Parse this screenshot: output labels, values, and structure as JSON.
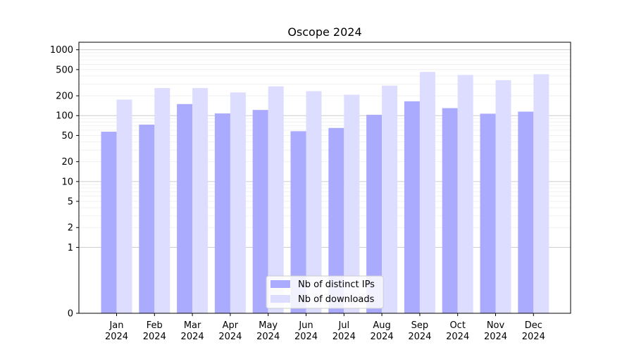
{
  "chart_data": {
    "type": "bar",
    "title": "Oscope 2024",
    "xlabel": "",
    "ylabel": "",
    "y_scale": "symlog",
    "ylim": [
      0,
      1300
    ],
    "y_ticks": [
      0,
      1,
      2,
      5,
      10,
      20,
      50,
      100,
      200,
      500,
      1000
    ],
    "categories": [
      "Jan\n2024",
      "Feb\n2024",
      "Mar\n2024",
      "Apr\n2024",
      "May\n2024",
      "Jun\n2024",
      "Jul\n2024",
      "Aug\n2024",
      "Sep\n2024",
      "Oct\n2024",
      "Nov\n2024",
      "Dec\n2024"
    ],
    "series": [
      {
        "name": "Nb of distinct IPs",
        "color": "#aaaaff",
        "values": [
          57,
          73,
          150,
          108,
          122,
          58,
          65,
          103,
          165,
          130,
          107,
          115
        ]
      },
      {
        "name": "Nb of downloads",
        "color": "#ddddff",
        "values": [
          175,
          262,
          262,
          225,
          278,
          235,
          208,
          285,
          460,
          415,
          345,
          425
        ]
      }
    ],
    "grid": true,
    "legend_position": "lower-center"
  }
}
